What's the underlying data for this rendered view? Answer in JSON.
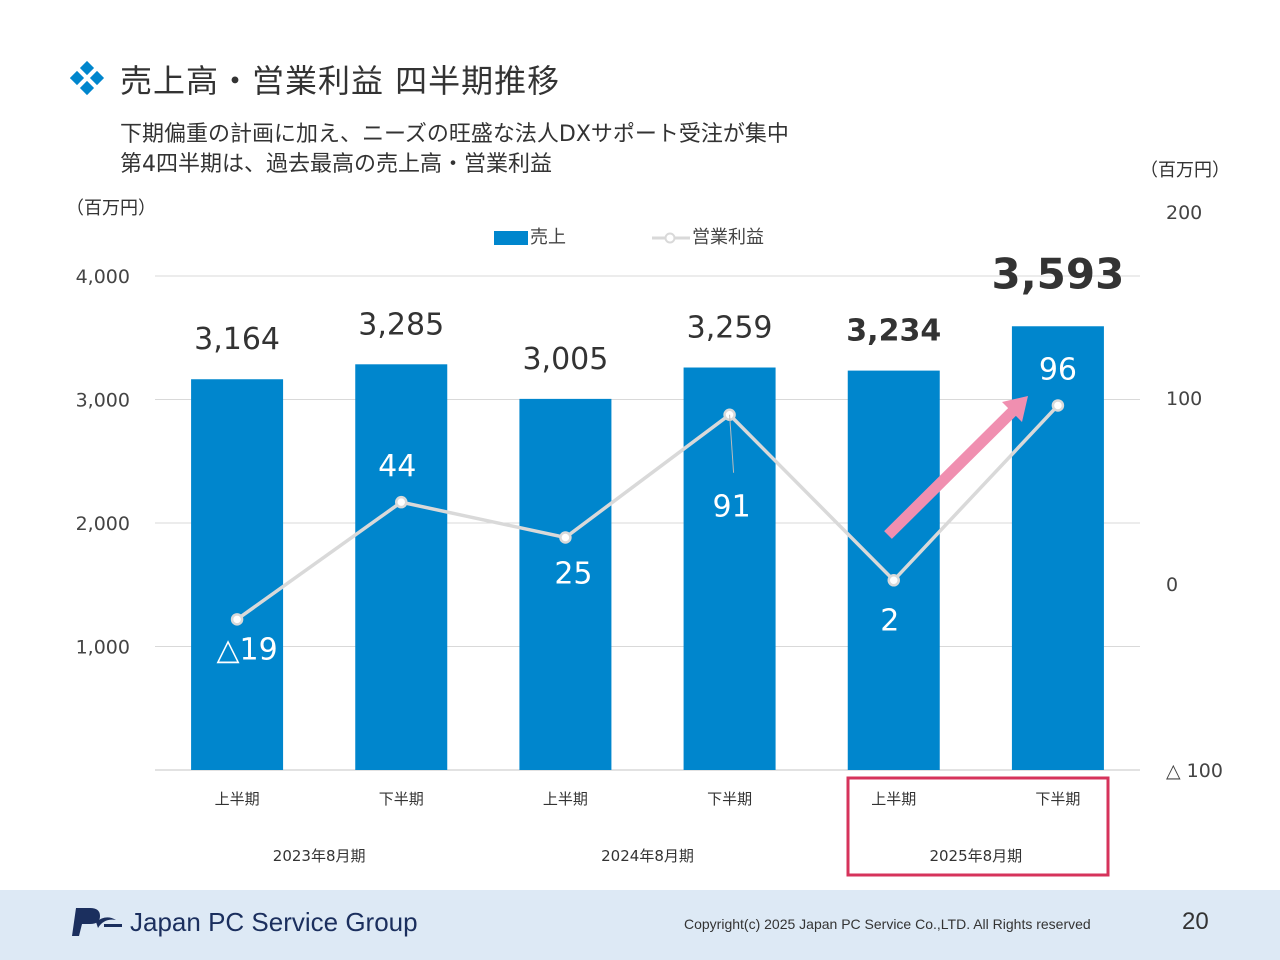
{
  "page": {
    "title": "売上高・営業利益 四半期推移",
    "subtitle_lines": [
      "下期偏重の計画に加え、ニーズの旺盛な法人DXサポート受注が集中",
      "第4四半期は、過去最高の売上高・営業利益"
    ],
    "company": "Japan PC Service Group",
    "copyright": "Copyright(c) 2025 Japan PC Service Co.,LTD. All Rights reserved",
    "page_number": "20"
  },
  "colors": {
    "bar": "#0086cd",
    "line": "#d9d9d9",
    "grid": "#d9d9d9",
    "arrow": "#f08fb0",
    "highlight_box": "#d6335b",
    "footer_bg": "#dde9f5",
    "accent": "#0086cd"
  },
  "chart_data": {
    "type": "bar+line",
    "left_unit": "（百万円）",
    "right_unit": "（百万円）",
    "left_axis": {
      "min": 0,
      "max": 4000,
      "ticks": [
        1000,
        2000,
        3000,
        4000
      ],
      "tick_labels": [
        "1,000",
        "2,000",
        "3,000",
        "4,000"
      ]
    },
    "right_axis": {
      "min": -100,
      "max": 200,
      "ticks": [
        -100,
        0,
        100,
        200
      ],
      "tick_labels": [
        "△ 100",
        "0",
        "100",
        "200"
      ]
    },
    "legend": [
      "売上",
      "営業利益"
    ],
    "categories": [
      "上半期",
      "下半期",
      "上半期",
      "下半期",
      "上半期",
      "下半期"
    ],
    "fiscal_years": [
      "2023年8月期",
      "2024年8月期",
      "2025年8月期"
    ],
    "series": [
      {
        "name": "売上",
        "type": "bar",
        "axis": "left",
        "values": [
          3164,
          3285,
          3005,
          3259,
          3234,
          3593
        ],
        "labels": [
          "3,164",
          "3,285",
          "3,005",
          "3,259",
          "3,234",
          "3,593"
        ]
      },
      {
        "name": "営業利益",
        "type": "line",
        "axis": "right",
        "values": [
          -19,
          44,
          25,
          91,
          2,
          96
        ],
        "labels": [
          "△19",
          "44",
          "25",
          "91",
          "2",
          "96"
        ]
      }
    ],
    "highlight_group": "2025年8月期"
  }
}
